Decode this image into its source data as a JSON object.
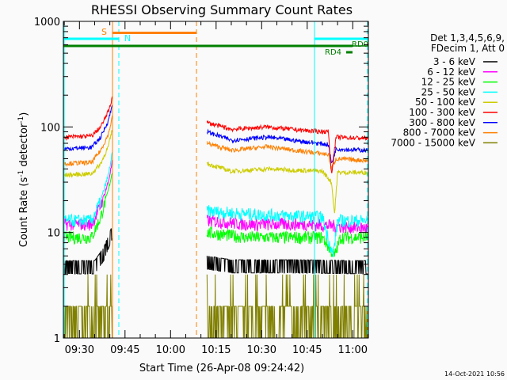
{
  "chart_data": {
    "type": "line",
    "title": "RHESSI Observing Summary Count Rates",
    "xlabel": "Start Time (26-Apr-08 09:24:42)",
    "ylabel": "Count Rate (s",
    "ylabel_sup1": "-1",
    "ylabel_mid": " detector",
    "ylabel_sup2": "-1",
    "ylabel_end": ")",
    "yscale": "log",
    "ylim": [
      1,
      1000
    ],
    "xlim_minutes_after_0900": [
      24.7,
      125.2
    ],
    "xticks": [
      {
        "t": 30,
        "label": "09:30"
      },
      {
        "t": 45,
        "label": "09:45"
      },
      {
        "t": 60,
        "label": "10:00"
      },
      {
        "t": 75,
        "label": "10:15"
      },
      {
        "t": 90,
        "label": "10:30"
      },
      {
        "t": 105,
        "label": "10:45"
      },
      {
        "t": 120,
        "label": "11:00"
      }
    ],
    "yticks": [
      {
        "v": 1,
        "label": "1"
      },
      {
        "v": 10,
        "label": "10"
      },
      {
        "v": 100,
        "label": "100"
      },
      {
        "v": 1000,
        "label": "1000"
      }
    ],
    "legend_header": [
      "Det 1,3,4,5,6,9,",
      "FDecim 1, Att 0"
    ],
    "legend_position": "right",
    "segments": [
      [
        25,
        41.3
      ],
      [
        72,
        125
      ]
    ],
    "series": [
      {
        "name": "3 - 6 keV",
        "color": "#000000",
        "seg1": [
          [
            25,
            4.5
          ],
          [
            35,
            4.5
          ],
          [
            38,
            6
          ],
          [
            41,
            10
          ]
        ],
        "seg2": [
          [
            72,
            5
          ],
          [
            80,
            4.6
          ],
          [
            100,
            4.6
          ],
          [
            125,
            4.5
          ]
        ]
      },
      {
        "name": "6 - 12 keV",
        "color": "#ff00ff",
        "seg1": [
          [
            25,
            12
          ],
          [
            34,
            12
          ],
          [
            37,
            18
          ],
          [
            39.5,
            30
          ],
          [
            41,
            50
          ]
        ],
        "seg2": [
          [
            72,
            13
          ],
          [
            85,
            12
          ],
          [
            105,
            12
          ],
          [
            115,
            11.5
          ],
          [
            125,
            11
          ]
        ]
      },
      {
        "name": "12 - 25 keV",
        "color": "#00ff00",
        "seg1": [
          [
            25,
            9
          ],
          [
            34,
            9
          ],
          [
            37,
            14
          ],
          [
            39.5,
            25
          ],
          [
            41,
            40
          ]
        ],
        "seg2": [
          [
            72,
            10
          ],
          [
            85,
            9
          ],
          [
            110,
            9
          ],
          [
            114,
            6
          ],
          [
            116,
            9
          ],
          [
            125,
            9
          ]
        ]
      },
      {
        "name": "25 - 50 keV",
        "color": "#00ffff",
        "seg1": [
          [
            25,
            13
          ],
          [
            34,
            13
          ],
          [
            37,
            20
          ],
          [
            39.5,
            35
          ],
          [
            41,
            60
          ]
        ],
        "seg2": [
          [
            72,
            16
          ],
          [
            85,
            15
          ],
          [
            110,
            14
          ],
          [
            113.5,
            6
          ],
          [
            115,
            13
          ],
          [
            125,
            13
          ]
        ]
      },
      {
        "name": "50 - 100 keV",
        "color": "#cccc00",
        "seg1": [
          [
            25,
            35
          ],
          [
            34,
            36
          ],
          [
            37,
            45
          ],
          [
            39.5,
            65
          ],
          [
            41,
            100
          ]
        ],
        "seg2": [
          [
            72,
            45
          ],
          [
            80,
            38
          ],
          [
            92,
            40
          ],
          [
            110,
            38
          ],
          [
            113,
            30
          ],
          [
            114,
            15
          ],
          [
            115,
            37
          ],
          [
            125,
            37
          ]
        ]
      },
      {
        "name": "100 - 300 keV",
        "color": "#ff0000",
        "seg1": [
          [
            25,
            80
          ],
          [
            34,
            82
          ],
          [
            37,
            100
          ],
          [
            39.5,
            140
          ],
          [
            41,
            200
          ]
        ],
        "seg2": [
          [
            72,
            110
          ],
          [
            80,
            95
          ],
          [
            92,
            100
          ],
          [
            105,
            92
          ],
          [
            112,
            90
          ],
          [
            113,
            35
          ],
          [
            114.5,
            80
          ],
          [
            125,
            78
          ]
        ]
      },
      {
        "name": "300 - 800 keV",
        "color": "#0000ff",
        "seg1": [
          [
            25,
            62
          ],
          [
            34,
            64
          ],
          [
            37,
            80
          ],
          [
            39.5,
            115
          ],
          [
            41,
            170
          ]
        ],
        "seg2": [
          [
            72,
            90
          ],
          [
            80,
            75
          ],
          [
            92,
            80
          ],
          [
            105,
            72
          ],
          [
            112,
            68
          ],
          [
            113,
            45
          ],
          [
            114.5,
            62
          ],
          [
            125,
            60
          ]
        ]
      },
      {
        "name": "800 - 7000 keV",
        "color": "#ff8000",
        "seg1": [
          [
            25,
            45
          ],
          [
            34,
            46
          ],
          [
            37,
            60
          ],
          [
            39.5,
            85
          ],
          [
            41,
            130
          ]
        ],
        "seg2": [
          [
            72,
            70
          ],
          [
            80,
            60
          ],
          [
            92,
            65
          ],
          [
            105,
            58
          ],
          [
            112,
            55
          ],
          [
            113,
            40
          ],
          [
            114.5,
            50
          ],
          [
            125,
            48
          ]
        ]
      },
      {
        "name": "7000 - 15000 keV",
        "color": "#808000",
        "seg1": [
          [
            25,
            1.5
          ],
          [
            41,
            1.6
          ]
        ],
        "seg2": [
          [
            72,
            1.5
          ],
          [
            125,
            1.5
          ]
        ]
      }
    ],
    "flags": [
      {
        "label": "S",
        "color": "#ff8000",
        "start": 41.5,
        "end": 66.5,
        "level": "high"
      },
      {
        "label": "N",
        "color": "#00ffff",
        "start": 24.7,
        "end": 43.5,
        "level": "mid",
        "end2_start": 104.5,
        "end2_end": 125
      },
      {
        "label": "RD0",
        "color": "#008000"
      },
      {
        "label": "RD4",
        "color": "#008000"
      }
    ]
  },
  "footer": {
    "timestamp": "14-Oct-2021 10:56"
  },
  "colors": {
    "bg": "#fafafa"
  }
}
